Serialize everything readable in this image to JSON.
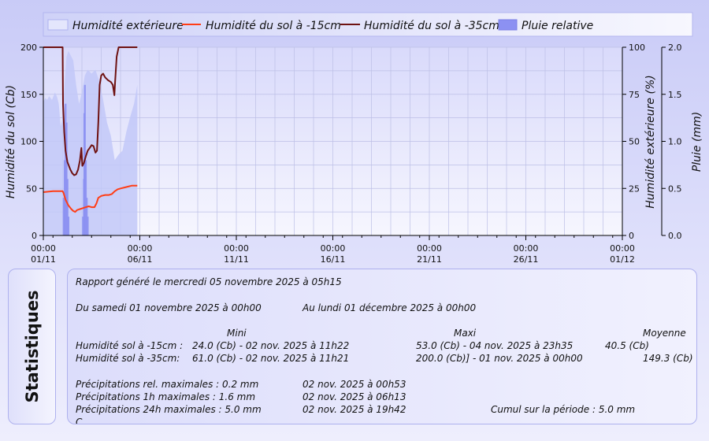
{
  "chart_data": {
    "type": "line",
    "x_ticks": [
      {
        "time": "00:00",
        "date": "01/11"
      },
      {
        "time": "00:00",
        "date": "06/11"
      },
      {
        "time": "00:00",
        "date": "11/11"
      },
      {
        "time": "00:00",
        "date": "16/11"
      },
      {
        "time": "00:00",
        "date": "21/11"
      },
      {
        "time": "00:00",
        "date": "26/11"
      },
      {
        "time": "00:00",
        "date": "01/12"
      }
    ],
    "xlim": [
      "2025-11-01 00:00",
      "2025-12-01 00:00"
    ],
    "x_unit": "days since 2025-11-01 00:00",
    "y_left": {
      "label": "Humidité du sol (Cb)",
      "ticks": [
        "0",
        "50",
        "100",
        "150",
        "200"
      ],
      "ylim": [
        0,
        200
      ]
    },
    "y_right1": {
      "label": "Humidité extérieure (%)",
      "ticks": [
        "0",
        "25",
        "50",
        "75",
        "100"
      ],
      "ylim": [
        0,
        100
      ]
    },
    "y_right2": {
      "label": "Pluie (mm)",
      "ticks": [
        "0.0",
        "0.5",
        "1.0",
        "1.5",
        "2.0"
      ],
      "ylim": [
        0,
        2
      ]
    },
    "legend": {
      "position": "top"
    },
    "series": [
      {
        "name": "Humidité extérieure",
        "kind": "area",
        "axis": "y_right1",
        "color": "#c2c8f8",
        "points": [
          [
            0,
            71
          ],
          [
            0.1,
            73
          ],
          [
            0.2,
            72
          ],
          [
            0.3,
            74
          ],
          [
            0.45,
            72
          ],
          [
            0.6,
            76
          ],
          [
            0.7,
            74
          ],
          [
            0.8,
            70
          ],
          [
            0.9,
            58
          ],
          [
            1.0,
            62
          ],
          [
            1.1,
            80
          ],
          [
            1.2,
            95
          ],
          [
            1.3,
            98
          ],
          [
            1.4,
            96
          ],
          [
            1.55,
            93
          ],
          [
            1.7,
            80
          ],
          [
            1.85,
            70
          ],
          [
            2.0,
            76
          ],
          [
            2.15,
            85
          ],
          [
            2.3,
            88
          ],
          [
            2.5,
            86
          ],
          [
            2.7,
            88
          ],
          [
            2.9,
            82
          ],
          [
            3.1,
            72
          ],
          [
            3.3,
            60
          ],
          [
            3.5,
            53
          ],
          [
            3.7,
            40
          ],
          [
            3.9,
            43
          ],
          [
            4.1,
            45
          ],
          [
            4.3,
            55
          ],
          [
            4.5,
            63
          ],
          [
            4.7,
            70
          ],
          [
            4.87,
            80
          ],
          [
            4.87,
            0
          ]
        ]
      },
      {
        "name": "Humidité du sol à -15cm",
        "kind": "line",
        "axis": "y_left",
        "color": "#ff3d16",
        "points": [
          [
            0,
            46
          ],
          [
            0.5,
            47
          ],
          [
            1.0,
            47
          ],
          [
            1.05,
            45
          ],
          [
            1.15,
            38
          ],
          [
            1.3,
            32
          ],
          [
            1.45,
            28
          ],
          [
            1.55,
            26
          ],
          [
            1.65,
            25
          ],
          [
            1.75,
            27
          ],
          [
            1.9,
            28
          ],
          [
            2.05,
            29
          ],
          [
            2.2,
            30
          ],
          [
            2.35,
            31
          ],
          [
            2.5,
            30
          ],
          [
            2.65,
            30
          ],
          [
            2.75,
            34
          ],
          [
            2.85,
            40
          ],
          [
            3.0,
            42
          ],
          [
            3.2,
            43
          ],
          [
            3.4,
            43
          ],
          [
            3.55,
            44
          ],
          [
            3.7,
            47
          ],
          [
            3.85,
            49
          ],
          [
            4.0,
            50
          ],
          [
            4.2,
            51
          ],
          [
            4.4,
            52
          ],
          [
            4.6,
            53
          ],
          [
            4.87,
            53
          ]
        ]
      },
      {
        "name": "Humidité du sol à -35cm",
        "kind": "line",
        "axis": "y_left",
        "color": "#6e1212",
        "points": [
          [
            0,
            200
          ],
          [
            1.0,
            200
          ],
          [
            1.02,
            140
          ],
          [
            1.08,
            110
          ],
          [
            1.15,
            90
          ],
          [
            1.25,
            78
          ],
          [
            1.4,
            70
          ],
          [
            1.5,
            66
          ],
          [
            1.6,
            64
          ],
          [
            1.7,
            65
          ],
          [
            1.8,
            70
          ],
          [
            1.9,
            80
          ],
          [
            1.97,
            93
          ],
          [
            2.02,
            74
          ],
          [
            2.1,
            77
          ],
          [
            2.2,
            84
          ],
          [
            2.3,
            90
          ],
          [
            2.4,
            93
          ],
          [
            2.5,
            96
          ],
          [
            2.6,
            95
          ],
          [
            2.7,
            88
          ],
          [
            2.78,
            90
          ],
          [
            2.85,
            120
          ],
          [
            2.92,
            160
          ],
          [
            3.0,
            170
          ],
          [
            3.1,
            172
          ],
          [
            3.2,
            168
          ],
          [
            3.35,
            165
          ],
          [
            3.5,
            163
          ],
          [
            3.6,
            160
          ],
          [
            3.68,
            149
          ],
          [
            3.72,
            163
          ],
          [
            3.8,
            190
          ],
          [
            3.9,
            200
          ],
          [
            4.87,
            200
          ]
        ]
      },
      {
        "name": "Pluie relative",
        "kind": "bar",
        "axis": "y_right2",
        "color": "#8c91f2",
        "points": [
          [
            1.05,
            0.4
          ],
          [
            1.1,
            0.8
          ],
          [
            1.15,
            1.4
          ],
          [
            1.2,
            1.2
          ],
          [
            1.25,
            0.6
          ],
          [
            1.3,
            0.2
          ],
          [
            2.05,
            0.2
          ],
          [
            2.1,
            0.6
          ],
          [
            2.12,
            1.3
          ],
          [
            2.15,
            1.6
          ],
          [
            2.2,
            0.8
          ],
          [
            2.25,
            0.4
          ],
          [
            2.3,
            0.2
          ]
        ]
      }
    ]
  },
  "side_title": "Statistiques",
  "stats": {
    "report": "Rapport généré le mercredi 05 novembre 2025 à 05h15",
    "period_from": "Du samedi 01 novembre 2025 à 00h00",
    "period_to": "Au lundi 01 décembre 2025 à 00h00",
    "hdr_min": "Mini",
    "hdr_max": "Maxi",
    "hdr_avg": "Moyenne",
    "row1_label": "Humidité sol à -15cm :",
    "row1_min": "24.0 (Cb) - 02 nov. 2025 à 11h22",
    "row1_max": "53.0 (Cb) - 04 nov. 2025 à 23h35",
    "row1_avg": "40.5 (Cb)",
    "row2_label": "Humidité sol à -35cm:",
    "row2_min": "61.0 (Cb) - 02 nov. 2025 à 11h21",
    "row2_max": "200.0 (Cb)] - 01 nov. 2025 à 00h00",
    "row2_avg": "149.3 (Cb)",
    "precip1_label": "Précipitations rel. maximales : 0.2 mm",
    "precip1_date": "02 nov. 2025 à 00h53",
    "precip2_label": "Précipitations 1h maximales : 1.6 mm",
    "precip2_date": "02 nov. 2025 à 06h13",
    "precip3_label": "Précipitations 24h maximales : 5.0 mm",
    "precip3_date": "02 nov. 2025 à 19h42",
    "cumul": "Cumul sur la période : 5.0 mm",
    "cut_line": "C"
  }
}
